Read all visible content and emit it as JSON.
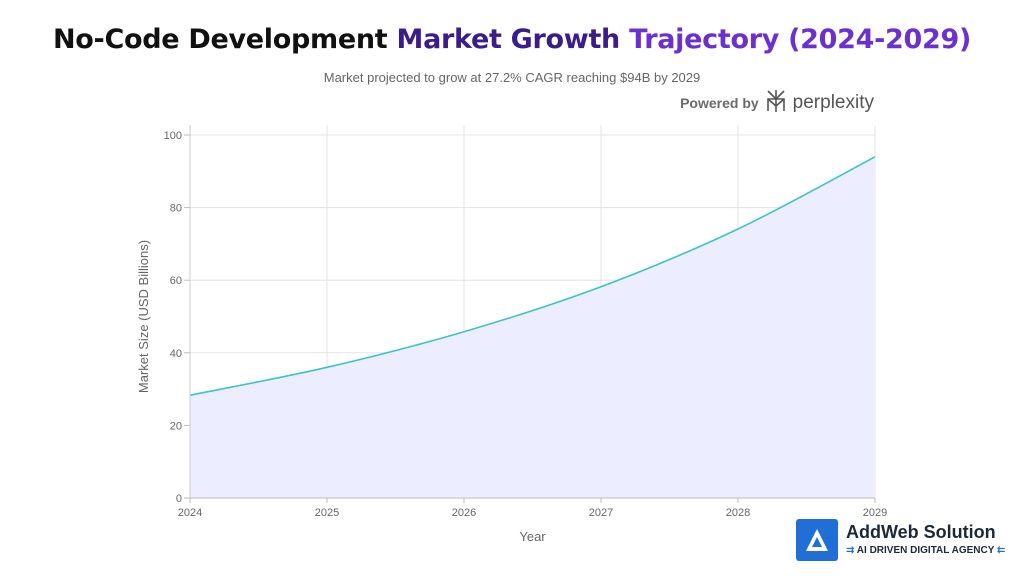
{
  "header": {
    "title_part1": "No-Code Development",
    "title_part2": "Market Growth",
    "title_part3": "Trajectory (2024-2029)",
    "subtitle": "Market projected to grow at 27.2% CAGR reaching $94B by 2029",
    "powered_by": "Powered by",
    "powered_logo": "perplexity",
    "powered_icon": "perplexity-logo-icon"
  },
  "chart_data": {
    "type": "area",
    "title": "No-Code Development Market Growth Trajectory (2024-2029)",
    "subtitle": "Market projected to grow at 27.2% CAGR reaching $94B by 2029",
    "xlabel": "Year",
    "ylabel": "Market Size (USD Billions)",
    "x": [
      2024,
      2025,
      2026,
      2027,
      2028,
      2029
    ],
    "series": [
      {
        "values": [
          28.3,
          36.0,
          45.8,
          58.2,
          74.1,
          94.0
        ]
      }
    ],
    "xlim": [
      2024,
      2029
    ],
    "ylim": [
      0,
      100
    ],
    "yticks": [
      0,
      20,
      40,
      60,
      80,
      100
    ],
    "xticks": [
      2024,
      2025,
      2026,
      2027,
      2028,
      2029
    ],
    "grid": true,
    "colors": {
      "line": "#3ac3cb",
      "fill": "#ecedfe",
      "grid": "#e3e3e3"
    }
  },
  "branding": {
    "name": "AddWeb Solution",
    "tagline": "AI DRIVEN DIGITAL AGENCY",
    "logo_icon": "addweb-logo-icon",
    "accent": "#1f6fd6"
  }
}
